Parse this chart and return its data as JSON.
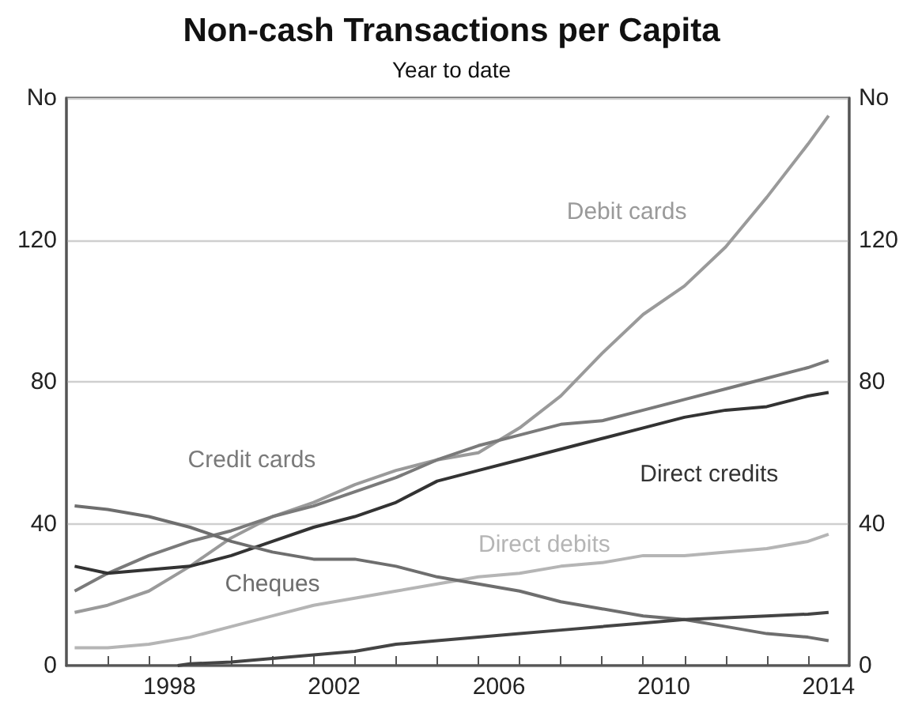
{
  "chart_data": {
    "type": "line",
    "title": "Non-cash Transactions per Capita",
    "subtitle": "Year to date",
    "xlim": [
      1996,
      2015
    ],
    "xticks": [
      {
        "value": 1997,
        "label": null
      },
      {
        "value": 1998,
        "label": null
      },
      {
        "value": 1998.5,
        "label": "1998"
      },
      {
        "value": 1999,
        "label": null
      },
      {
        "value": 2000,
        "label": null
      },
      {
        "value": 2001,
        "label": null
      },
      {
        "value": 2002,
        "label": null
      },
      {
        "value": 2002.5,
        "label": "2002"
      },
      {
        "value": 2003,
        "label": null
      },
      {
        "value": 2004,
        "label": null
      },
      {
        "value": 2005,
        "label": null
      },
      {
        "value": 2006,
        "label": null
      },
      {
        "value": 2006.5,
        "label": "2006"
      },
      {
        "value": 2007,
        "label": null
      },
      {
        "value": 2008,
        "label": null
      },
      {
        "value": 2009,
        "label": null
      },
      {
        "value": 2010,
        "label": null
      },
      {
        "value": 2010.5,
        "label": "2010"
      },
      {
        "value": 2011,
        "label": null
      },
      {
        "value": 2012,
        "label": null
      },
      {
        "value": 2013,
        "label": null
      },
      {
        "value": 2014,
        "label": null
      },
      {
        "value": 2014.5,
        "label": "2014"
      }
    ],
    "ylim": [
      0,
      160
    ],
    "yticks": [
      0,
      40,
      80,
      120,
      {
        "value": 160,
        "label": "No"
      }
    ],
    "y2lim": [
      0,
      160
    ],
    "y2ticks": [
      0,
      40,
      80,
      120,
      {
        "value": 160,
        "label": "No"
      }
    ],
    "grid": "y",
    "legend": false,
    "marker": "none",
    "line_style": "solid",
    "x": [
      1996.2,
      1997,
      1998,
      1999,
      2000,
      2001,
      2002,
      2003,
      2004,
      2005,
      2006,
      2007,
      2008,
      2009,
      2010,
      2011,
      2012,
      2013,
      2014,
      2014.5
    ],
    "series": [
      {
        "name": "Debit cards",
        "color": "#9a9a9a",
        "values": [
          15,
          17,
          21,
          28,
          36,
          42,
          46,
          51,
          55,
          58,
          60,
          67,
          76,
          88,
          99,
          107,
          118,
          132,
          147,
          155
        ]
      },
      {
        "name": "Credit cards",
        "color": "#7a7a7a",
        "values": [
          21,
          26,
          31,
          35,
          38,
          42,
          45,
          49,
          53,
          58,
          62,
          65,
          68,
          69,
          72,
          75,
          78,
          81,
          84,
          86
        ]
      },
      {
        "name": "Direct credits",
        "color": "#333333",
        "values": [
          28,
          26,
          27,
          28,
          31,
          35,
          39,
          42,
          46,
          52,
          55,
          58,
          61,
          64,
          67,
          70,
          72,
          73,
          76,
          77
        ]
      },
      {
        "name": "Direct debits",
        "color": "#b5b5b5",
        "values": [
          5,
          5,
          6,
          8,
          11,
          14,
          17,
          19,
          21,
          23,
          25,
          26,
          28,
          29,
          31,
          31,
          32,
          33,
          35,
          37
        ]
      },
      {
        "name": "Cheques",
        "color": "#6e6e6e",
        "values": [
          45,
          44,
          42,
          39,
          35,
          32,
          30,
          30,
          28,
          25,
          23,
          21,
          18,
          16,
          14,
          13,
          11,
          9,
          8,
          7
        ]
      },
      {
        "color": "#444444",
        "x": [
          1998.7,
          1999,
          2000,
          2001,
          2002,
          2003,
          2004,
          2005,
          2006,
          2007,
          2008,
          2009,
          2010,
          2011,
          2012,
          2013,
          2014,
          2014.5
        ],
        "values": [
          0,
          0.5,
          1,
          2,
          3,
          4,
          6,
          7,
          8,
          9,
          10,
          11,
          12,
          13,
          13.5,
          14,
          14.5,
          15
        ]
      }
    ]
  }
}
